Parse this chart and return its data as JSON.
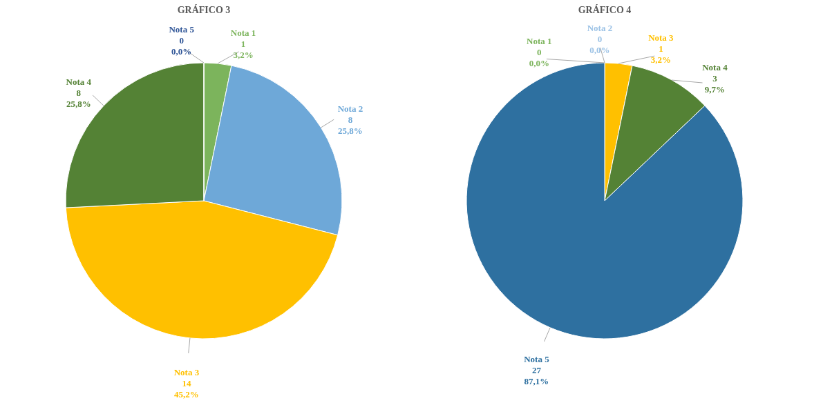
{
  "chart_data": [
    {
      "type": "pie",
      "title": "GRÁFICO 3",
      "categories": [
        "Nota 1",
        "Nota 2",
        "Nota 3",
        "Nota 4",
        "Nota 5"
      ],
      "values": [
        3.2,
        25.8,
        45.2,
        25.8,
        0
      ],
      "colors": [
        "#7cb45c",
        "#6ea8d8",
        "#ffc000",
        "#548235",
        "#2f5597"
      ],
      "value_labels": [
        "1\n3,2%",
        "8\n25,8%",
        "14\n45,2%",
        "8\n25,8%",
        "0\n0,0%"
      ]
    },
    {
      "type": "pie",
      "title": "GRÁFICO 4",
      "categories": [
        "Nota 1",
        "Nota 2",
        "Nota 3",
        "Nota 4",
        "Nota 5"
      ],
      "values": [
        0,
        0,
        3.2,
        9.7,
        87.1
      ],
      "colors": [
        "#7cb45c",
        "#9dc3e6",
        "#ffc000",
        "#548235",
        "#2e70a0"
      ],
      "value_labels": [
        "0\n0,0%",
        "0\n0,0%",
        "1\n3,2%",
        "3\n9,7%",
        "27\n87,1%"
      ]
    }
  ]
}
